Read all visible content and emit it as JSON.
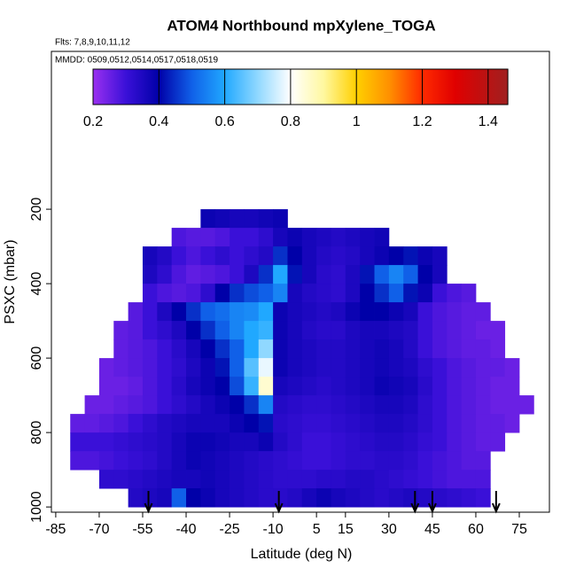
{
  "chart_data": {
    "type": "heatmap",
    "title": "ATOM4 Northbound mpXylene_TOGA",
    "subtitle": "Flts: 7,8,9,10,11,12",
    "annotation": "MMDD: 0509,0512,0514,0517,0518,0519",
    "xlabel": "Latitude (deg N)",
    "ylabel": "PSXC (mbar)",
    "xlim": [
      -86.5,
      85.4
    ],
    "ylim": [
      -224,
      1014
    ],
    "xticks": [
      -85,
      -70,
      -55,
      -40,
      -25,
      -10,
      5,
      15,
      30,
      45,
      60,
      75
    ],
    "yticks": [
      200,
      400,
      600,
      800,
      1000
    ],
    "lat_edges": [
      -85,
      -80,
      -75,
      -70,
      -65,
      -60,
      -55,
      -50,
      -45,
      -40,
      -35,
      -30,
      -25,
      -20,
      -15,
      -10,
      -5,
      0,
      5,
      10,
      15,
      20,
      25,
      30,
      35,
      40,
      45,
      50,
      55,
      60,
      65,
      70,
      75,
      80,
      85
    ],
    "pressure_edges": [
      200,
      250,
      300,
      350,
      400,
      450,
      500,
      550,
      600,
      650,
      700,
      750,
      800,
      850,
      900,
      950,
      1000
    ],
    "values": [
      [
        null,
        null,
        null,
        null,
        null,
        null,
        null,
        null,
        null,
        null,
        0.38,
        0.37,
        0.36,
        0.36,
        0.37,
        0.38,
        null,
        null,
        null,
        null,
        null,
        null,
        null,
        null,
        null,
        null,
        null,
        null,
        null,
        null,
        null,
        null,
        null,
        null
      ],
      [
        null,
        null,
        null,
        null,
        null,
        null,
        null,
        null,
        0.28,
        0.27,
        0.27,
        0.28,
        0.3,
        0.3,
        0.32,
        0.36,
        0.38,
        0.36,
        0.35,
        0.34,
        0.35,
        0.36,
        0.37,
        null,
        null,
        null,
        null,
        null,
        null,
        null,
        null,
        null,
        null,
        null
      ],
      [
        null,
        null,
        null,
        null,
        null,
        null,
        0.36,
        0.34,
        0.3,
        0.28,
        0.3,
        0.32,
        0.3,
        0.32,
        0.34,
        0.45,
        0.4,
        0.36,
        0.34,
        0.33,
        0.34,
        0.36,
        0.38,
        0.4,
        0.42,
        0.38,
        0.36,
        null,
        null,
        null,
        null,
        null,
        null,
        null
      ],
      [
        null,
        null,
        null,
        null,
        null,
        null,
        0.35,
        0.32,
        0.28,
        0.26,
        0.27,
        0.28,
        0.3,
        0.35,
        0.45,
        0.6,
        0.42,
        0.36,
        0.33,
        0.32,
        0.35,
        0.42,
        0.5,
        0.55,
        0.5,
        0.4,
        0.36,
        null,
        null,
        null,
        null,
        null,
        null,
        null
      ],
      [
        null,
        null,
        null,
        null,
        null,
        null,
        0.3,
        0.28,
        0.27,
        0.28,
        0.32,
        0.4,
        0.45,
        0.48,
        0.5,
        0.55,
        0.36,
        0.34,
        0.33,
        0.32,
        0.35,
        0.4,
        0.45,
        0.5,
        0.42,
        0.38,
        0.3,
        0.28,
        0.27,
        null,
        null,
        null,
        null,
        null
      ],
      [
        null,
        null,
        null,
        null,
        null,
        0.27,
        0.3,
        0.35,
        0.4,
        0.45,
        0.5,
        0.52,
        0.55,
        0.56,
        0.6,
        0.38,
        0.36,
        0.35,
        0.34,
        0.35,
        0.38,
        0.4,
        0.4,
        0.38,
        0.36,
        0.3,
        0.28,
        0.27,
        0.26,
        0.26,
        null,
        null,
        null,
        null
      ],
      [
        null,
        null,
        null,
        null,
        0.26,
        0.27,
        0.3,
        0.32,
        0.35,
        0.4,
        0.45,
        0.5,
        0.55,
        0.6,
        0.62,
        0.38,
        0.36,
        0.34,
        0.33,
        0.33,
        0.35,
        0.36,
        0.36,
        0.35,
        0.34,
        0.3,
        0.28,
        0.27,
        0.26,
        0.25,
        0.25,
        null,
        null,
        null
      ],
      [
        null,
        null,
        null,
        null,
        0.26,
        0.27,
        0.28,
        0.3,
        0.33,
        0.36,
        0.4,
        0.45,
        0.5,
        0.6,
        0.7,
        0.38,
        0.36,
        0.35,
        0.34,
        0.34,
        0.35,
        0.36,
        0.37,
        0.36,
        0.34,
        0.3,
        0.28,
        0.27,
        0.26,
        0.26,
        0.25,
        null,
        null,
        null
      ],
      [
        null,
        null,
        null,
        0.25,
        0.26,
        0.27,
        0.28,
        0.3,
        0.32,
        0.35,
        0.38,
        0.42,
        0.5,
        0.65,
        0.78,
        0.38,
        0.36,
        0.35,
        0.34,
        0.34,
        0.35,
        0.36,
        0.37,
        0.36,
        0.35,
        0.32,
        0.3,
        0.28,
        0.27,
        0.26,
        0.26,
        0.25,
        null,
        null
      ],
      [
        null,
        null,
        null,
        0.25,
        0.25,
        0.26,
        0.28,
        0.3,
        0.33,
        0.36,
        0.38,
        0.4,
        0.48,
        0.62,
        0.85,
        0.36,
        0.35,
        0.34,
        0.33,
        0.34,
        0.35,
        0.36,
        0.38,
        0.37,
        0.36,
        0.33,
        0.3,
        0.28,
        0.27,
        0.26,
        0.25,
        0.25,
        null,
        null
      ],
      [
        null,
        null,
        0.25,
        0.25,
        0.26,
        0.27,
        0.28,
        0.3,
        0.32,
        0.34,
        0.36,
        0.38,
        0.4,
        0.45,
        0.55,
        0.34,
        0.33,
        0.32,
        0.32,
        0.33,
        0.34,
        0.35,
        0.36,
        0.36,
        0.35,
        0.32,
        0.3,
        0.28,
        0.27,
        0.26,
        0.25,
        0.25,
        0.25,
        null
      ],
      [
        null,
        0.26,
        0.26,
        0.27,
        0.28,
        0.3,
        0.32,
        0.34,
        0.35,
        0.36,
        0.36,
        0.36,
        0.38,
        0.4,
        0.42,
        0.33,
        0.32,
        0.31,
        0.31,
        0.32,
        0.33,
        0.34,
        0.35,
        0.35,
        0.34,
        0.32,
        0.3,
        0.28,
        0.27,
        0.26,
        0.26,
        0.25,
        null,
        null
      ],
      [
        null,
        0.3,
        0.3,
        0.3,
        0.31,
        0.32,
        0.33,
        0.34,
        0.36,
        0.38,
        0.38,
        0.37,
        0.36,
        0.36,
        0.38,
        0.34,
        0.32,
        0.3,
        0.3,
        0.31,
        0.32,
        0.33,
        0.34,
        0.34,
        0.33,
        0.31,
        0.3,
        0.28,
        0.27,
        0.26,
        0.26,
        null,
        null,
        null
      ],
      [
        null,
        0.28,
        0.28,
        0.29,
        0.3,
        0.31,
        0.32,
        0.34,
        0.36,
        0.38,
        0.37,
        0.36,
        0.35,
        0.34,
        0.33,
        0.32,
        0.31,
        0.3,
        0.3,
        0.31,
        0.32,
        0.32,
        0.33,
        0.33,
        0.32,
        0.3,
        0.29,
        0.28,
        0.27,
        0.27,
        null,
        null,
        null,
        null
      ],
      [
        null,
        null,
        null,
        0.32,
        0.32,
        0.33,
        0.34,
        0.35,
        0.36,
        0.36,
        0.37,
        0.36,
        0.35,
        0.34,
        0.33,
        0.32,
        0.32,
        0.32,
        0.33,
        0.33,
        0.34,
        0.34,
        0.33,
        0.32,
        0.31,
        0.3,
        0.29,
        0.28,
        0.28,
        0.28,
        null,
        null,
        null,
        null
      ],
      [
        null,
        null,
        null,
        null,
        null,
        0.34,
        0.35,
        0.36,
        0.5,
        0.4,
        0.38,
        0.36,
        0.35,
        0.34,
        0.33,
        0.33,
        0.34,
        0.36,
        0.38,
        0.36,
        0.35,
        0.34,
        0.33,
        0.34,
        0.35,
        0.34,
        0.33,
        0.32,
        0.31,
        0.3,
        null,
        null,
        null,
        null
      ]
    ],
    "flight_markers_x": [
      -53,
      -8,
      39,
      45,
      67
    ],
    "colorbar": {
      "clim": [
        0.2,
        1.46
      ],
      "ticks": [
        0.2,
        0.4,
        0.6,
        0.8,
        1.0,
        1.2,
        1.4
      ],
      "stops": [
        0.2,
        0.3,
        0.4,
        0.5,
        0.6,
        0.7,
        0.8,
        0.9,
        1.0,
        1.1,
        1.2,
        1.3,
        1.46
      ],
      "colors": [
        "#9a30f0",
        "#3a10d8",
        "#0000a8",
        "#1060e8",
        "#20a8ff",
        "#90d8ff",
        "#ffffff",
        "#fff8a0",
        "#ffd000",
        "#ff9000",
        "#ff2a00",
        "#e00000",
        "#a02020"
      ]
    }
  }
}
